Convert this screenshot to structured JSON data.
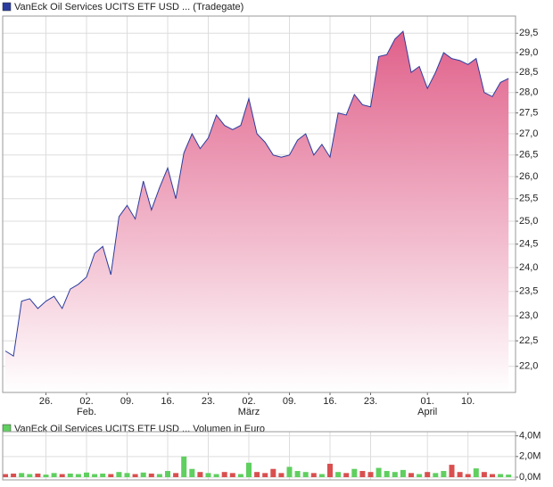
{
  "chart_data": [
    {
      "type": "area",
      "title": "VanEck Oil Services UCITS ETF USD ... (Tradegate)",
      "categories": [
        null,
        null,
        null,
        null,
        null,
        "26.",
        null,
        null,
        null,
        null,
        "02.\nFeb.",
        null,
        null,
        null,
        null,
        "09.",
        null,
        null,
        null,
        null,
        "16.",
        null,
        null,
        null,
        null,
        "23.",
        null,
        null,
        null,
        null,
        "02.\nMärz",
        null,
        null,
        null,
        null,
        "09.",
        null,
        null,
        null,
        null,
        "16.",
        null,
        null,
        null,
        null,
        "23.",
        null,
        null,
        null,
        null,
        null,
        null,
        "01.\nApril",
        null,
        null,
        null,
        null,
        "10.",
        null,
        null,
        null,
        null,
        null
      ],
      "values": [
        22.3,
        22.2,
        23.3,
        23.35,
        23.15,
        23.3,
        23.4,
        23.15,
        23.55,
        23.65,
        23.8,
        24.3,
        24.45,
        23.85,
        25.1,
        25.35,
        25.05,
        25.9,
        25.25,
        25.75,
        26.2,
        25.5,
        26.55,
        27.0,
        26.65,
        26.9,
        27.45,
        27.2,
        27.1,
        27.2,
        27.85,
        27.0,
        26.8,
        26.5,
        26.45,
        26.5,
        26.85,
        27.0,
        26.5,
        26.75,
        26.45,
        27.5,
        27.45,
        27.95,
        27.7,
        27.65,
        28.9,
        28.95,
        29.35,
        29.55,
        28.5,
        28.65,
        28.1,
        28.5,
        29.0,
        28.85,
        28.8,
        28.7,
        28.85,
        28.0,
        27.9,
        28.25,
        28.35
      ],
      "color": "#2b3c9e",
      "fill_color": "#e0608a",
      "log_scale": true,
      "grid": true,
      "ylim": [
        21.5,
        29.95
      ],
      "yticks": [
        {
          "value": 22,
          "label": "22,0"
        },
        {
          "value": 22.5,
          "label": "22,5"
        },
        {
          "value": 23,
          "label": "23,0"
        },
        {
          "value": 23.5,
          "label": "23,5"
        },
        {
          "value": 24,
          "label": "24,0"
        },
        {
          "value": 24.5,
          "label": "24,5"
        },
        {
          "value": 25,
          "label": "25,0"
        },
        {
          "value": 25.5,
          "label": "25,5"
        },
        {
          "value": 26,
          "label": "26,0"
        },
        {
          "value": 26.5,
          "label": "26,5"
        },
        {
          "value": 27,
          "label": "27,0"
        },
        {
          "value": 27.5,
          "label": "27,5"
        },
        {
          "value": 28,
          "label": "28,0"
        },
        {
          "value": 28.5,
          "label": "28,5"
        },
        {
          "value": 29,
          "label": "29,0"
        },
        {
          "value": 29.5,
          "label": "29,5"
        }
      ]
    },
    {
      "type": "bar",
      "title": "VanEck Oil Services UCITS ETF USD ... Volumen in Euro",
      "values": [
        0.3,
        0.35,
        0.4,
        0.3,
        0.35,
        0.25,
        0.4,
        0.3,
        0.35,
        0.3,
        0.45,
        0.3,
        0.35,
        0.3,
        0.5,
        0.4,
        0.3,
        0.45,
        0.35,
        0.3,
        0.6,
        0.4,
        2.0,
        0.8,
        0.5,
        0.4,
        0.3,
        0.5,
        0.4,
        0.3,
        1.4,
        0.5,
        0.4,
        0.8,
        0.4,
        1.0,
        0.6,
        0.5,
        0.4,
        0.3,
        1.3,
        0.5,
        0.4,
        0.8,
        0.6,
        0.5,
        0.9,
        0.6,
        0.5,
        0.7,
        0.4,
        0.3,
        0.5,
        0.4,
        0.6,
        1.2,
        0.5,
        0.3,
        0.85,
        0.5,
        0.3,
        0.3,
        0.25
      ],
      "colors": [
        "#d94f4f",
        "#d94f4f",
        "#5fcf5f",
        "#5fcf5f",
        "#d94f4f",
        "#5fcf5f",
        "#5fcf5f",
        "#d94f4f",
        "#5fcf5f",
        "#5fcf5f",
        "#5fcf5f",
        "#5fcf5f",
        "#5fcf5f",
        "#d94f4f",
        "#5fcf5f",
        "#5fcf5f",
        "#d94f4f",
        "#5fcf5f",
        "#d94f4f",
        "#5fcf5f",
        "#5fcf5f",
        "#d94f4f",
        "#5fcf5f",
        "#5fcf5f",
        "#d94f4f",
        "#5fcf5f",
        "#5fcf5f",
        "#d94f4f",
        "#d94f4f",
        "#5fcf5f",
        "#5fcf5f",
        "#d94f4f",
        "#d94f4f",
        "#d94f4f",
        "#d94f4f",
        "#5fcf5f",
        "#5fcf5f",
        "#5fcf5f",
        "#d94f4f",
        "#5fcf5f",
        "#d94f4f",
        "#5fcf5f",
        "#d94f4f",
        "#5fcf5f",
        "#d94f4f",
        "#d94f4f",
        "#5fcf5f",
        "#5fcf5f",
        "#5fcf5f",
        "#5fcf5f",
        "#d94f4f",
        "#5fcf5f",
        "#d94f4f",
        "#5fcf5f",
        "#5fcf5f",
        "#d94f4f",
        "#d94f4f",
        "#d94f4f",
        "#5fcf5f",
        "#d94f4f",
        "#d94f4f",
        "#5fcf5f",
        "#5fcf5f"
      ],
      "legend_color": "#5fcf5f",
      "grid": true,
      "ylim": [
        0,
        4.4
      ],
      "yticks": [
        {
          "value": 0,
          "label": "0,0M"
        },
        {
          "value": 2,
          "label": "2,0M"
        },
        {
          "value": 4,
          "label": "4,0M"
        }
      ]
    }
  ]
}
